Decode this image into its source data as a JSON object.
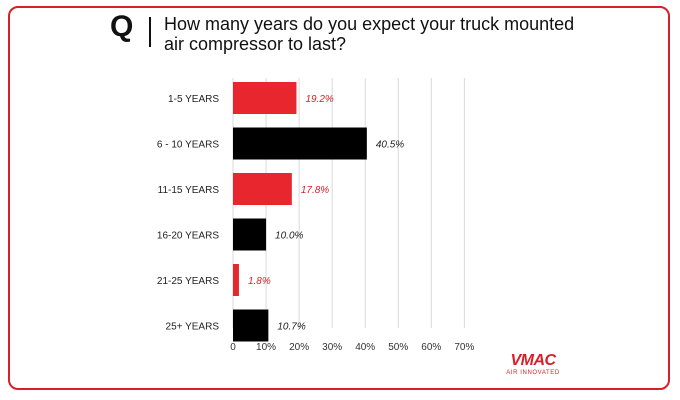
{
  "question": {
    "label": "Q",
    "text": "How many years do you expect your truck mounted air compressor to last?"
  },
  "logo": {
    "wordmark": "VMAC",
    "tagline": "AIR INNOVATED"
  },
  "chart_data": {
    "type": "bar",
    "orientation": "horizontal",
    "title": "How many years do you expect your truck mounted air compressor to last?",
    "categories": [
      "1-5 YEARS",
      "6 - 10 YEARS",
      "11-15 YEARS",
      "16-20 YEARS",
      "21-25 YEARS",
      "25+ YEARS"
    ],
    "values": [
      19.2,
      40.5,
      17.8,
      10.0,
      1.8,
      10.7
    ],
    "value_labels": [
      "19.2%",
      "40.5%",
      "17.8%",
      "10.0%",
      "1.8%",
      "10.7%"
    ],
    "bar_colors": [
      "#e8262d",
      "#000000",
      "#e8262d",
      "#000000",
      "#e8262d",
      "#000000"
    ],
    "label_colors": [
      "#d62128",
      "#222222",
      "#d62128",
      "#222222",
      "#d62128",
      "#222222"
    ],
    "xlim": [
      0,
      70
    ],
    "xticks": [
      0,
      10,
      20,
      30,
      40,
      50,
      60,
      70
    ],
    "xtick_labels": [
      "0",
      "10%",
      "20%",
      "30%",
      "40%",
      "50%",
      "60%",
      "70%"
    ],
    "grid": true
  }
}
